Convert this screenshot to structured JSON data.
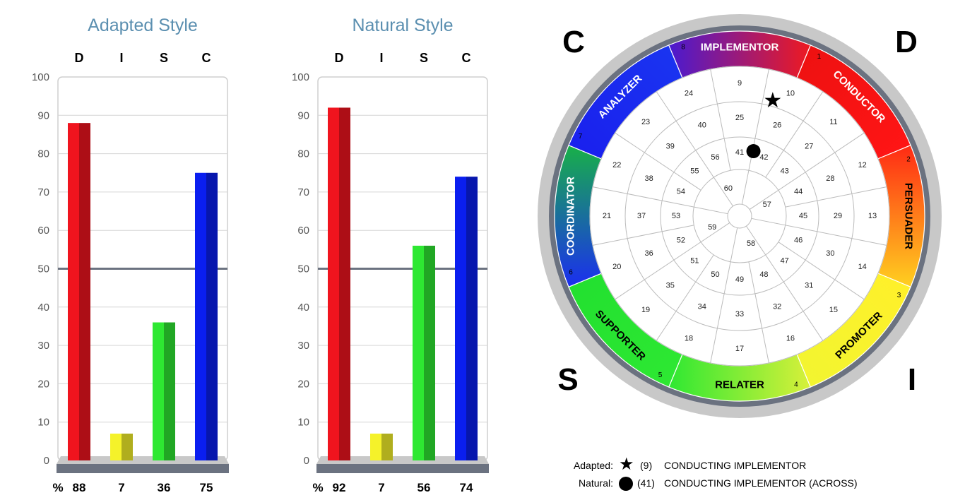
{
  "chart_data": [
    {
      "type": "bar",
      "title": "Adapted Style",
      "categories": [
        "D",
        "I",
        "S",
        "C"
      ],
      "values": [
        88,
        7,
        36,
        75
      ],
      "value_prefix": "%",
      "ylim": [
        0,
        100
      ],
      "yticks": [
        0,
        10,
        20,
        30,
        40,
        50,
        60,
        70,
        80,
        90,
        100
      ],
      "reference_line": 50,
      "grid": true
    },
    {
      "type": "bar",
      "title": "Natural Style",
      "categories": [
        "D",
        "I",
        "S",
        "C"
      ],
      "values": [
        92,
        7,
        56,
        74
      ],
      "value_prefix": "%",
      "ylim": [
        0,
        100
      ],
      "yticks": [
        0,
        10,
        20,
        30,
        40,
        50,
        60,
        70,
        80,
        90,
        100
      ],
      "reference_line": 50,
      "grid": true
    }
  ],
  "colors": {
    "D": "#f0141e",
    "I": "#f5f22a",
    "S": "#2ee832",
    "C": "#0a1ef0",
    "title": "#5b8fb0",
    "midline": "#6b7280",
    "base": "#6b7280"
  },
  "wheel": {
    "corner_labels": [
      "C",
      "D",
      "S",
      "I"
    ],
    "sectors": [
      {
        "number": "1",
        "label": "CONDUCTOR"
      },
      {
        "number": "2",
        "label": "PERSUADER"
      },
      {
        "number": "3",
        "label": "PROMOTER"
      },
      {
        "number": "4",
        "label": "RELATER"
      },
      {
        "number": "5",
        "label": "SUPPORTER"
      },
      {
        "number": "6",
        "label": "COORDINATOR"
      },
      {
        "number": "7",
        "label": "ANALYZER"
      },
      {
        "number": "8",
        "label": "IMPLEMENTOR"
      }
    ],
    "ring_numbers": [
      [
        "9",
        "10",
        "11",
        "12",
        "13",
        "14",
        "15",
        "16",
        "17",
        "18",
        "19",
        "20",
        "21",
        "22",
        "23",
        "24"
      ],
      [
        "25",
        "26",
        "27",
        "28",
        "29",
        "30",
        "31",
        "32",
        "33",
        "34",
        "35",
        "36",
        "37",
        "38",
        "39",
        "40"
      ],
      [
        "41",
        "42",
        "43",
        "44",
        "45",
        "46",
        "47",
        "48",
        "49",
        "50",
        "51",
        "52",
        "53",
        "54",
        "55",
        "56"
      ],
      [
        "57",
        "58",
        "59",
        "60"
      ]
    ],
    "adapted_position": "9",
    "natural_position": "41"
  },
  "legend": {
    "adapted_label": "Adapted:",
    "adapted_value": "(9)",
    "adapted_text": "CONDUCTING IMPLEMENTOR",
    "natural_label": "Natural:",
    "natural_value": "(41)",
    "natural_text": "CONDUCTING IMPLEMENTOR (ACROSS)"
  }
}
